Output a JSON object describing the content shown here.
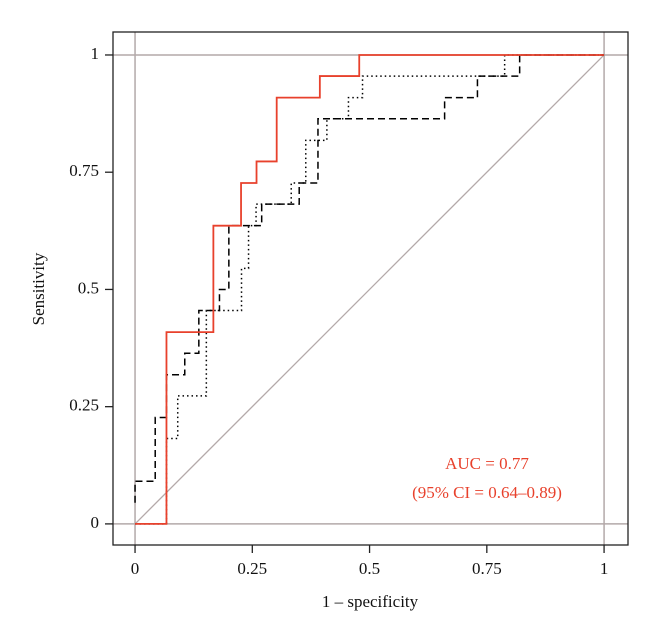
{
  "chart_data": {
    "type": "line",
    "xlabel": "1 – specificity",
    "ylabel": "Sensitivity",
    "annotations": [
      "AUC = 0.77",
      "(95% CI = 0.64–0.89)"
    ],
    "annotation_color": "#e8412c",
    "xlim": [
      -0.047,
      1.051
    ],
    "ylim": [
      -0.045,
      1.049
    ],
    "xticks": [
      0,
      0.25,
      0.5,
      0.75,
      1
    ],
    "yticks": [
      0,
      0.25,
      0.5,
      0.75,
      1
    ],
    "reference_color": "#b3a9a9",
    "series": [
      {
        "color": "#000000",
        "linestyle": "dotted",
        "x": [
          0,
          0.067,
          0.067,
          0.091,
          0.091,
          0.152,
          0.152,
          0.227,
          0.227,
          0.242,
          0.242,
          0.258,
          0.258,
          0.333,
          0.333,
          0.364,
          0.364,
          0.409,
          0.409,
          0.455,
          0.455,
          0.485,
          0.485,
          0.788,
          0.788,
          1
        ],
        "values": [
          0,
          0,
          0.182,
          0.182,
          0.273,
          0.273,
          0.455,
          0.455,
          0.545,
          0.545,
          0.636,
          0.636,
          0.682,
          0.682,
          0.727,
          0.727,
          0.818,
          0.818,
          0.864,
          0.864,
          0.909,
          0.909,
          0.955,
          0.955,
          1,
          1
        ]
      },
      {
        "color": "#000000",
        "linestyle": "dashed",
        "x": [
          0,
          0,
          0.043,
          0.043,
          0.067,
          0.067,
          0.106,
          0.106,
          0.136,
          0.136,
          0.18,
          0.18,
          0.2,
          0.2,
          0.27,
          0.27,
          0.35,
          0.35,
          0.39,
          0.39,
          0.66,
          0.66,
          0.73,
          0.73,
          0.82,
          0.82,
          1
        ],
        "values": [
          0.045,
          0.091,
          0.091,
          0.227,
          0.227,
          0.318,
          0.318,
          0.364,
          0.364,
          0.455,
          0.455,
          0.5,
          0.5,
          0.636,
          0.636,
          0.682,
          0.682,
          0.727,
          0.727,
          0.864,
          0.864,
          0.909,
          0.909,
          0.955,
          0.955,
          1,
          1
        ]
      },
      {
        "color": "#e8412c",
        "linestyle": "solid",
        "x": [
          0,
          0.067,
          0.067,
          0.167,
          0.167,
          0.226,
          0.226,
          0.259,
          0.259,
          0.302,
          0.302,
          0.394,
          0.394,
          0.478,
          0.478,
          1
        ],
        "values": [
          0,
          0,
          0.409,
          0.409,
          0.636,
          0.636,
          0.727,
          0.727,
          0.773,
          0.773,
          0.909,
          0.909,
          0.955,
          0.955,
          1,
          1
        ]
      }
    ]
  }
}
